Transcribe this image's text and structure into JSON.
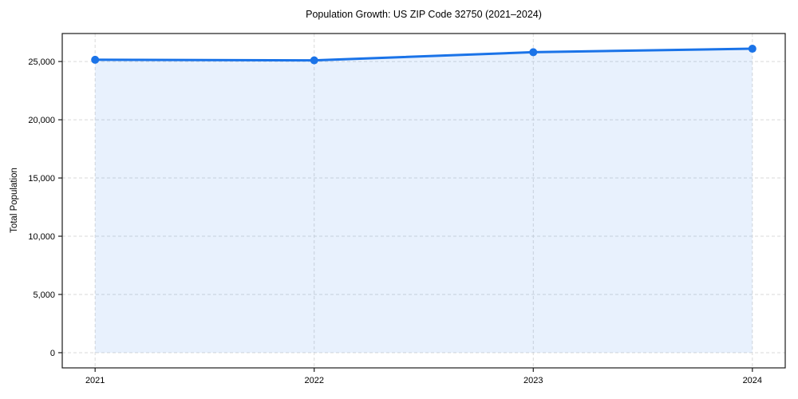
{
  "chart_data": {
    "type": "area",
    "title": "Population Growth: US ZIP Code 32750 (2021–2024)",
    "xlabel": "",
    "ylabel": "Total Population",
    "categories": [
      "2021",
      "2022",
      "2023",
      "2024"
    ],
    "series": [
      {
        "name": "Total Population",
        "values": [
          25150,
          25100,
          25800,
          26100
        ]
      }
    ],
    "ylim": [
      -1305,
      27405
    ],
    "yticks": [
      0,
      5000,
      10000,
      15000,
      20000,
      25000
    ],
    "ytick_labels": [
      "0",
      "5,000",
      "10,000",
      "15,000",
      "20,000",
      "25,000"
    ],
    "grid": true,
    "grid_style": "dashed",
    "legend": false,
    "colors": {
      "line": "#1a73e8",
      "fill_alpha": 0.1,
      "grid": "#d9d9d9",
      "spine": "#1a1a1a",
      "text": "#000000",
      "background": "#ffffff"
    }
  }
}
